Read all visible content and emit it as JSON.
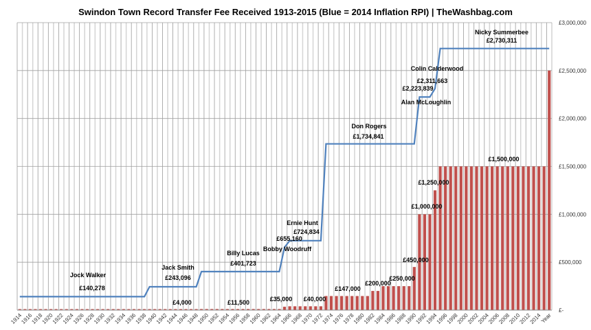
{
  "chart_data": {
    "type": "bar+line",
    "title": "Swindon Town Record Transfer Fee Received 1913-2015 (Blue = 2014 Inflation RPI) | TheWashbag.com",
    "xlabel": "",
    "ylabel": "",
    "ylim": [
      0,
      3000000
    ],
    "y_ticks": [
      0,
      500000,
      1000000,
      1500000,
      2000000,
      2500000,
      3000000
    ],
    "y_tick_labels": [
      "£-",
      "£500,000",
      "£1,000,000",
      "£1,500,000",
      "£2,000,000",
      "£2,500,000",
      "£3,000,000"
    ],
    "y_axis_side": "right",
    "grid": true,
    "colors": {
      "bars": "#c0504d",
      "line": "#4f81bd"
    },
    "categories_from": 1914,
    "categories_to": 2015,
    "extra_category": "Year",
    "tick_label_every": 2,
    "bars_nominal_fee": [
      {
        "from": 1914,
        "to": 1938,
        "value": 1000
      },
      {
        "from": 1939,
        "to": 1948,
        "value": 4000
      },
      {
        "from": 1949,
        "to": 1964,
        "value": 11500
      },
      {
        "from": 1965,
        "to": 1965,
        "value": 35000
      },
      {
        "from": 1966,
        "to": 1972,
        "value": 40000
      },
      {
        "from": 1973,
        "to": 1981,
        "value": 147000
      },
      {
        "from": 1982,
        "to": 1983,
        "value": 200000
      },
      {
        "from": 1984,
        "to": 1989,
        "value": 250000
      },
      {
        "from": 1990,
        "to": 1990,
        "value": 450000
      },
      {
        "from": 1991,
        "to": 1993,
        "value": 1000000
      },
      {
        "from": 1994,
        "to": 1994,
        "value": 1250000
      },
      {
        "from": 1995,
        "to": 2015,
        "value": 1500000
      }
    ],
    "bar_extra_category_value": 2500000,
    "line_2014_rpi": [
      {
        "from": 1914,
        "to": 1938,
        "value": 140278
      },
      {
        "from": 1939,
        "to": 1948,
        "value": 243096
      },
      {
        "from": 1949,
        "to": 1964,
        "value": 401723
      },
      {
        "from": 1965,
        "to": 1965,
        "value": 655160
      },
      {
        "from": 1966,
        "to": 1972,
        "value": 724834
      },
      {
        "from": 1973,
        "to": 1990,
        "value": 1734841
      },
      {
        "from": 1991,
        "to": 1993,
        "value": 2223839
      },
      {
        "from": 1994,
        "to": 1994,
        "value": 2311663
      },
      {
        "from": 1995,
        "to": 2015,
        "value": 2730311
      }
    ],
    "line_extends_to_extra_category": true,
    "annotations": [
      "Jock Walker",
      "£140,278",
      "Jack Smith",
      "£243,096",
      "£4,000",
      "Billy Lucas",
      "£401,723",
      "£11,500",
      "£655,160",
      "Bobby Woodruff",
      "Ernie Hunt",
      "£724,834",
      "£35,000",
      "£40,000",
      "Don Rogers",
      "£1,734,841",
      "£147,000",
      "£200,000",
      "£250,000",
      "£450,000",
      "Alan McLoughlin",
      "£2,223,839",
      "£2,311,663",
      "Colin Calderwood",
      "Nicky Summerbee",
      "£2,730,311",
      "£1,000,000",
      "£1,250,000",
      "£1,500,000"
    ]
  }
}
